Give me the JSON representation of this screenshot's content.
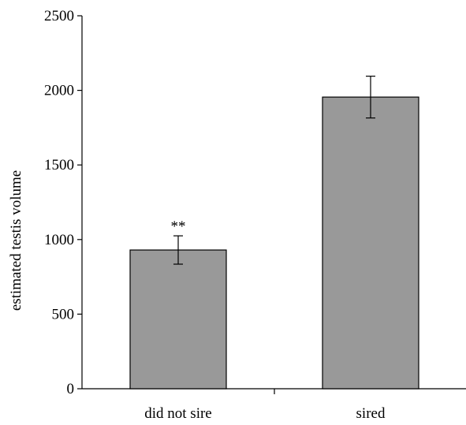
{
  "chart_data": {
    "type": "bar",
    "categories": [
      "did not sire",
      "sired"
    ],
    "values": [
      930,
      1955
    ],
    "error": [
      [
        835,
        1025
      ],
      [
        1815,
        2095
      ]
    ],
    "annotations": [
      "**",
      ""
    ],
    "ylabel": "estimated testis volume",
    "xlabel": "",
    "ylim": [
      0,
      2500
    ],
    "yticks": [
      0,
      500,
      1000,
      1500,
      2000,
      2500
    ],
    "grid": false,
    "bar_color": "#999999"
  }
}
